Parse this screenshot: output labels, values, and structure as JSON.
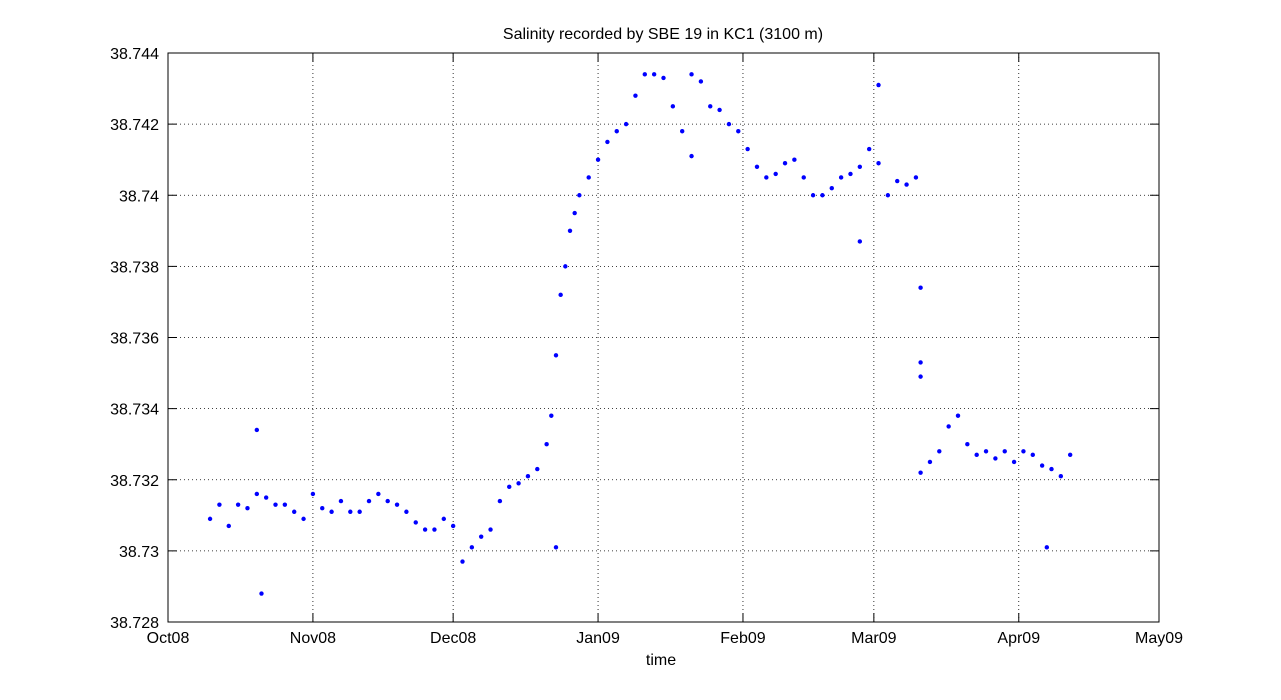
{
  "chart_data": {
    "type": "scatter",
    "title": "Salinity recorded by SBE 19 in KC1 (3100 m)",
    "xlabel": "time",
    "ylabel": "",
    "xlim": [
      "2008-10-01",
      "2009-05-01"
    ],
    "ylim": [
      38.728,
      38.744
    ],
    "x_ticks": [
      {
        "date": "2008-10-01",
        "label": "Oct08"
      },
      {
        "date": "2008-11-01",
        "label": "Nov08"
      },
      {
        "date": "2008-12-01",
        "label": "Dec08"
      },
      {
        "date": "2009-01-01",
        "label": "Jan09"
      },
      {
        "date": "2009-02-01",
        "label": "Feb09"
      },
      {
        "date": "2009-03-01",
        "label": "Mar09"
      },
      {
        "date": "2009-04-01",
        "label": "Apr09"
      },
      {
        "date": "2009-05-01",
        "label": "May09"
      }
    ],
    "y_ticks": [
      {
        "value": 38.728,
        "label": "38.728"
      },
      {
        "value": 38.73,
        "label": "38.73"
      },
      {
        "value": 38.732,
        "label": "38.732"
      },
      {
        "value": 38.734,
        "label": "38.734"
      },
      {
        "value": 38.736,
        "label": "38.736"
      },
      {
        "value": 38.738,
        "label": "38.738"
      },
      {
        "value": 38.74,
        "label": "38.74"
      },
      {
        "value": 38.742,
        "label": "38.742"
      },
      {
        "value": 38.744,
        "label": "38.744"
      }
    ],
    "grid": true,
    "marker_color": "#0000ff",
    "series": [
      {
        "points": [
          [
            "2008-10-10",
            38.7309
          ],
          [
            "2008-10-12",
            38.7313
          ],
          [
            "2008-10-14",
            38.7307
          ],
          [
            "2008-10-16",
            38.7313
          ],
          [
            "2008-10-18",
            38.7312
          ],
          [
            "2008-10-20",
            38.7316
          ],
          [
            "2008-10-22",
            38.7315
          ],
          [
            "2008-10-24",
            38.7313
          ],
          [
            "2008-10-26",
            38.7313
          ],
          [
            "2008-10-28",
            38.7311
          ],
          [
            "2008-10-30",
            38.7309
          ],
          [
            "2008-11-01",
            38.7316
          ],
          [
            "2008-11-03",
            38.7312
          ],
          [
            "2008-11-05",
            38.7311
          ],
          [
            "2008-11-07",
            38.7314
          ],
          [
            "2008-11-09",
            38.7311
          ],
          [
            "2008-11-11",
            38.7311
          ],
          [
            "2008-11-13",
            38.7314
          ],
          [
            "2008-11-15",
            38.7316
          ],
          [
            "2008-11-17",
            38.7314
          ],
          [
            "2008-11-19",
            38.7313
          ],
          [
            "2008-11-21",
            38.7311
          ],
          [
            "2008-11-23",
            38.7308
          ],
          [
            "2008-11-25",
            38.7306
          ],
          [
            "2008-11-27",
            38.7306
          ],
          [
            "2008-11-29",
            38.7309
          ],
          [
            "2008-12-01",
            38.7307
          ],
          [
            "2008-12-03",
            38.7297
          ],
          [
            "2008-12-05",
            38.7301
          ],
          [
            "2008-12-07",
            38.7304
          ],
          [
            "2008-12-09",
            38.7306
          ],
          [
            "2008-12-11",
            38.7314
          ],
          [
            "2008-12-13",
            38.7318
          ],
          [
            "2008-12-15",
            38.7319
          ],
          [
            "2008-12-17",
            38.7321
          ],
          [
            "2008-12-19",
            38.7323
          ],
          [
            "2008-12-21",
            38.733
          ],
          [
            "2008-12-22",
            38.7338
          ],
          [
            "2008-12-23",
            38.7355
          ],
          [
            "2008-12-24",
            38.7372
          ],
          [
            "2008-12-25",
            38.738
          ],
          [
            "2008-12-26",
            38.739
          ],
          [
            "2008-12-27",
            38.7395
          ],
          [
            "2008-12-28",
            38.74
          ],
          [
            "2008-12-30",
            38.7405
          ],
          [
            "2009-01-01",
            38.741
          ],
          [
            "2009-01-03",
            38.7415
          ],
          [
            "2009-01-05",
            38.7418
          ],
          [
            "2009-01-07",
            38.742
          ],
          [
            "2009-01-09",
            38.7428
          ],
          [
            "2009-01-11",
            38.7434
          ],
          [
            "2009-01-13",
            38.7434
          ],
          [
            "2009-01-15",
            38.7433
          ],
          [
            "2009-01-17",
            38.7425
          ],
          [
            "2009-01-19",
            38.7418
          ],
          [
            "2009-01-21",
            38.7434
          ],
          [
            "2009-01-23",
            38.7432
          ],
          [
            "2009-01-25",
            38.7425
          ],
          [
            "2009-01-27",
            38.7424
          ],
          [
            "2009-01-29",
            38.742
          ],
          [
            "2009-01-31",
            38.7418
          ],
          [
            "2009-02-02",
            38.7413
          ],
          [
            "2009-02-04",
            38.7408
          ],
          [
            "2009-02-06",
            38.7405
          ],
          [
            "2009-02-08",
            38.7406
          ],
          [
            "2009-02-10",
            38.7409
          ],
          [
            "2009-02-12",
            38.741
          ],
          [
            "2009-02-14",
            38.7405
          ],
          [
            "2009-02-16",
            38.74
          ],
          [
            "2009-02-18",
            38.74
          ],
          [
            "2009-02-20",
            38.7402
          ],
          [
            "2009-02-22",
            38.7405
          ],
          [
            "2009-02-24",
            38.7406
          ],
          [
            "2009-02-26",
            38.7408
          ],
          [
            "2009-02-28",
            38.7413
          ],
          [
            "2009-03-02",
            38.7409
          ],
          [
            "2009-03-04",
            38.74
          ],
          [
            "2009-03-06",
            38.7404
          ],
          [
            "2009-03-08",
            38.7403
          ],
          [
            "2009-03-10",
            38.7405
          ],
          [
            "2009-03-11",
            38.7322
          ],
          [
            "2009-03-13",
            38.7325
          ],
          [
            "2009-03-15",
            38.7328
          ],
          [
            "2009-03-17",
            38.7335
          ],
          [
            "2009-03-19",
            38.7338
          ],
          [
            "2009-03-21",
            38.733
          ],
          [
            "2009-03-23",
            38.7327
          ],
          [
            "2009-03-25",
            38.7328
          ],
          [
            "2009-03-27",
            38.7326
          ],
          [
            "2009-03-29",
            38.7328
          ],
          [
            "2009-03-31",
            38.7325
          ],
          [
            "2009-04-02",
            38.7328
          ],
          [
            "2009-04-04",
            38.7327
          ],
          [
            "2009-04-06",
            38.7324
          ],
          [
            "2009-04-08",
            38.7323
          ],
          [
            "2009-04-10",
            38.7321
          ],
          [
            "2009-04-12",
            38.7327
          ]
        ]
      }
    ],
    "outliers": [
      [
        "2008-10-20",
        38.7334
      ],
      [
        "2008-10-21",
        38.7288
      ],
      [
        "2008-12-23",
        38.7301
      ],
      [
        "2009-01-21",
        38.7411
      ],
      [
        "2009-02-26",
        38.7387
      ],
      [
        "2009-03-02",
        38.7431
      ],
      [
        "2009-03-11",
        38.7374
      ],
      [
        "2009-03-11",
        38.7353
      ],
      [
        "2009-03-11",
        38.7349
      ],
      [
        "2009-04-07",
        38.7301
      ]
    ]
  }
}
